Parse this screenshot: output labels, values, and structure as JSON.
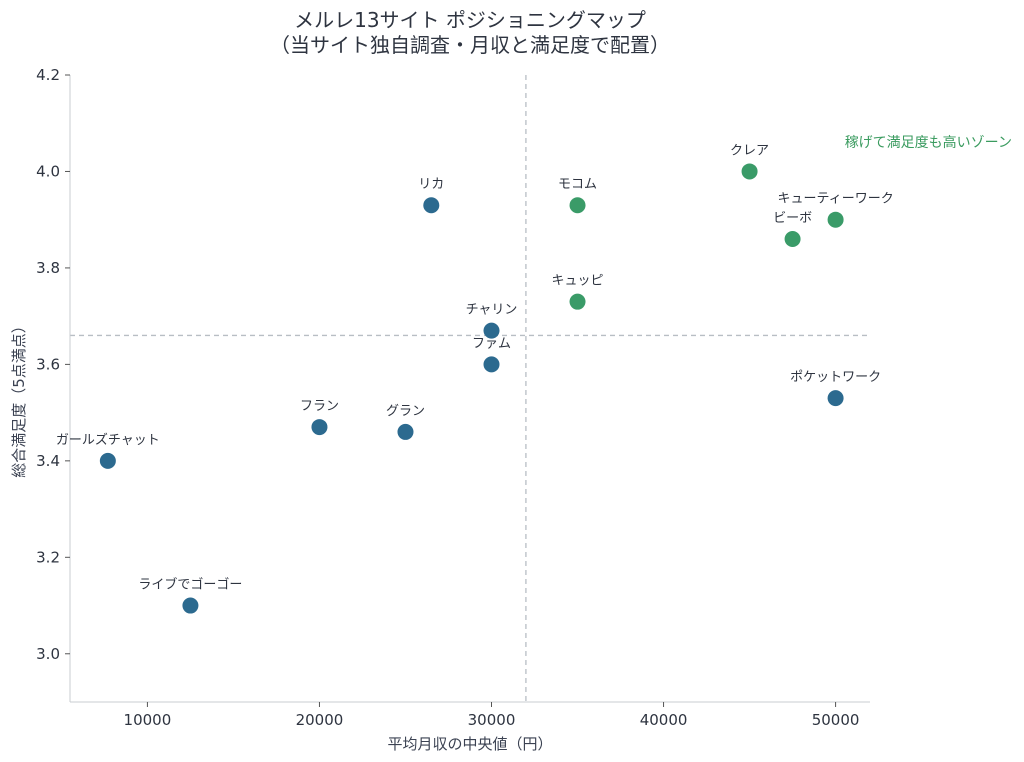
{
  "chart_data": {
    "type": "scatter",
    "title": "メルレ13サイト ポジショニングマップ",
    "subtitle": "（当サイト独自調査・月収と満足度で配置）",
    "xlabel": "平均月収の中央値（円）",
    "ylabel": "総合満足度（5点満点）",
    "xlim": [
      5500,
      52000
    ],
    "ylim": [
      2.9,
      4.2
    ],
    "xticks": [
      10000,
      20000,
      30000,
      40000,
      50000
    ],
    "yticks": [
      3.0,
      3.2,
      3.4,
      3.6,
      3.8,
      4.0,
      4.2
    ],
    "xtick_labels": [
      "10000",
      "20000",
      "30000",
      "40000",
      "50000"
    ],
    "ytick_labels": [
      "3.0",
      "3.2",
      "3.4",
      "3.6",
      "3.8",
      "4.0",
      "4.2"
    ],
    "ref_x": 32000,
    "ref_y": 3.66,
    "grid": false,
    "colors": {
      "high": "#3a9b68",
      "normal": "#2c6a8f",
      "ref_line": "#b8bec4"
    },
    "annotation": "稼げて満足度も高いゾーン",
    "points": [
      {
        "name": "クレア",
        "x": 45000,
        "y": 4.0,
        "group": "high"
      },
      {
        "name": "キューティーワーク",
        "x": 50000,
        "y": 3.9,
        "group": "high"
      },
      {
        "name": "ビーボ",
        "x": 47500,
        "y": 3.86,
        "group": "high"
      },
      {
        "name": "モコム",
        "x": 35000,
        "y": 3.93,
        "group": "high"
      },
      {
        "name": "キュッピ",
        "x": 35000,
        "y": 3.73,
        "group": "high"
      },
      {
        "name": "リカ",
        "x": 26500,
        "y": 3.93,
        "group": "normal"
      },
      {
        "name": "チャリン",
        "x": 30000,
        "y": 3.67,
        "group": "normal"
      },
      {
        "name": "ファム",
        "x": 30000,
        "y": 3.6,
        "group": "normal"
      },
      {
        "name": "ポケットワーク",
        "x": 50000,
        "y": 3.53,
        "group": "normal"
      },
      {
        "name": "フラン",
        "x": 20000,
        "y": 3.47,
        "group": "normal"
      },
      {
        "name": "グラン",
        "x": 25000,
        "y": 3.46,
        "group": "normal"
      },
      {
        "name": "ガールズチャット",
        "x": 7700,
        "y": 3.4,
        "group": "normal"
      },
      {
        "name": "ライブでゴーゴー",
        "x": 12500,
        "y": 3.1,
        "group": "normal"
      }
    ]
  }
}
